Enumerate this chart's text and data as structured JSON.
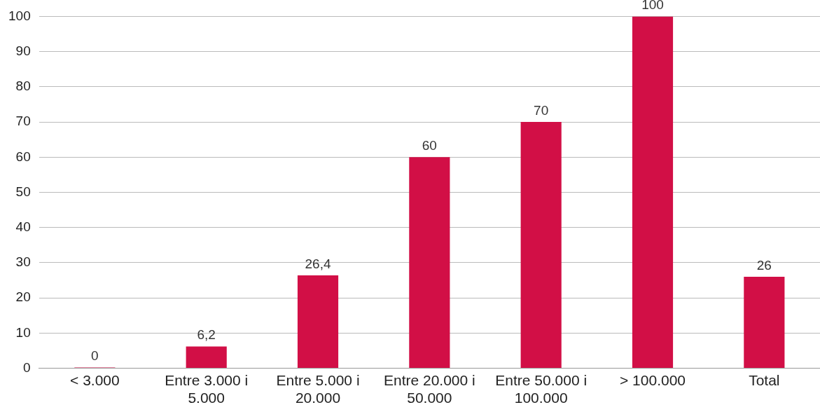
{
  "chart_data": {
    "type": "bar",
    "categories": [
      "< 3.000",
      "Entre 3.000 i 5.000",
      "Entre 5.000 i 20.000",
      "Entre 20.000 i 50.000",
      "Entre 50.000 i 100.000",
      "> 100.000",
      "Total"
    ],
    "values": [
      0,
      6.2,
      26.4,
      60,
      70,
      100,
      26
    ],
    "value_labels": [
      "0",
      "6,2",
      "26,4",
      "60",
      "70",
      "100",
      "26"
    ],
    "color": "#d20f46",
    "ylim": [
      0,
      100
    ],
    "yticks": [
      0,
      10,
      20,
      30,
      40,
      50,
      60,
      70,
      80,
      90,
      100
    ],
    "grid": "y"
  }
}
